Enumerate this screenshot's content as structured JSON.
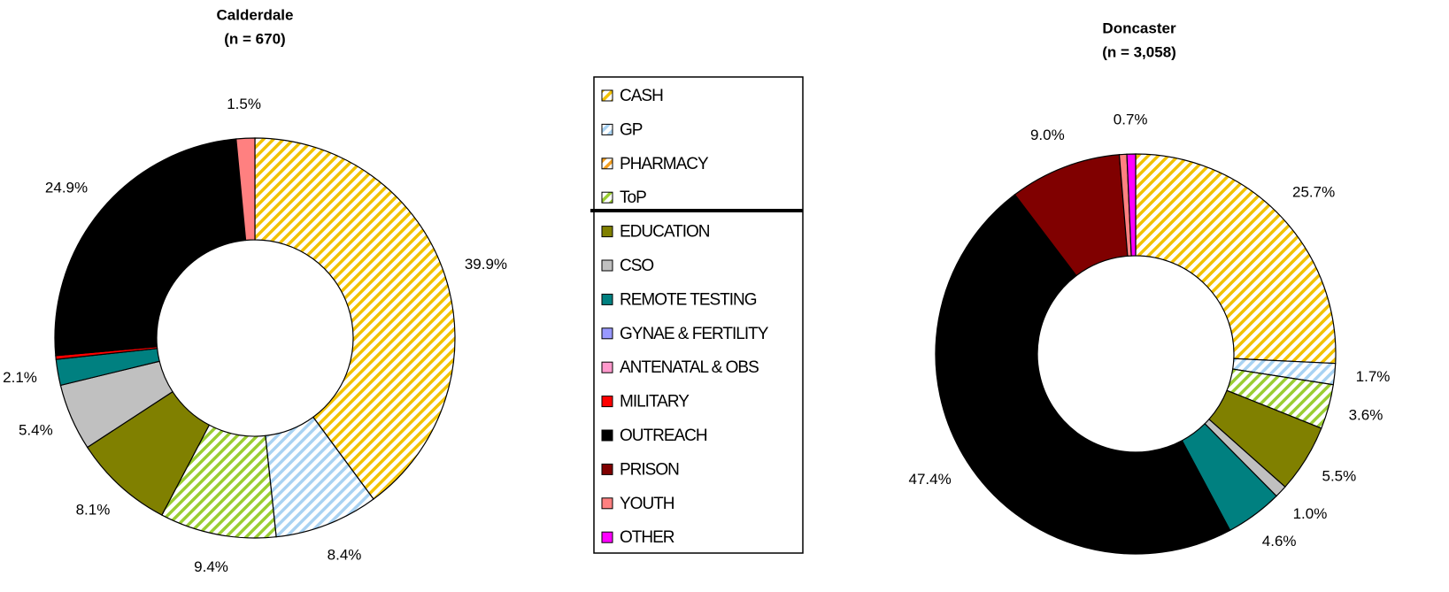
{
  "legend": {
    "categories": [
      "CASH",
      "GP",
      "PHARMACY",
      "ToP",
      "EDUCATION",
      "CSO",
      "REMOTE TESTING",
      "GYNAE & FERTILITY",
      "ANTENATAL & OBS",
      "MILITARY",
      "OUTREACH",
      "PRISON",
      "YOUTH",
      "OTHER"
    ],
    "colors": [
      "#f2c200",
      "#a8d2f2",
      "#f5a020",
      "#9acd32",
      "#808000",
      "#c0c0c0",
      "#008080",
      "#9999ff",
      "#ff99cc",
      "#ff0000",
      "#000000",
      "#800000",
      "#ff8080",
      "#ff00ff"
    ],
    "hatched": [
      true,
      true,
      true,
      true,
      false,
      false,
      false,
      false,
      false,
      false,
      false,
      false,
      false,
      false
    ]
  },
  "chart_data": [
    {
      "type": "pie",
      "title": "Calderdale",
      "subtitle": "(n = 670)",
      "values": [
        39.9,
        8.4,
        0,
        9.4,
        8.1,
        5.4,
        2.1,
        0,
        0,
        0.3,
        24.9,
        0,
        1.5,
        0
      ],
      "value_labels": [
        "39.9%",
        "8.4%",
        null,
        "9.4%",
        "8.1%",
        "5.4%",
        "2.1%",
        null,
        null,
        null,
        "24.9%",
        null,
        "1.5%",
        null
      ]
    },
    {
      "type": "pie",
      "title": "Doncaster",
      "subtitle": "(n = 3,058)",
      "values": [
        25.7,
        1.7,
        0,
        3.6,
        5.5,
        1.0,
        4.6,
        0,
        0,
        0,
        47.4,
        9.0,
        0.6,
        0.7
      ],
      "value_labels": [
        "25.7%",
        "1.7%",
        null,
        "3.6%",
        "5.5%",
        "1.0%",
        "4.6%",
        null,
        null,
        null,
        "47.4%",
        "9.0%",
        null,
        "0.7%"
      ]
    }
  ]
}
